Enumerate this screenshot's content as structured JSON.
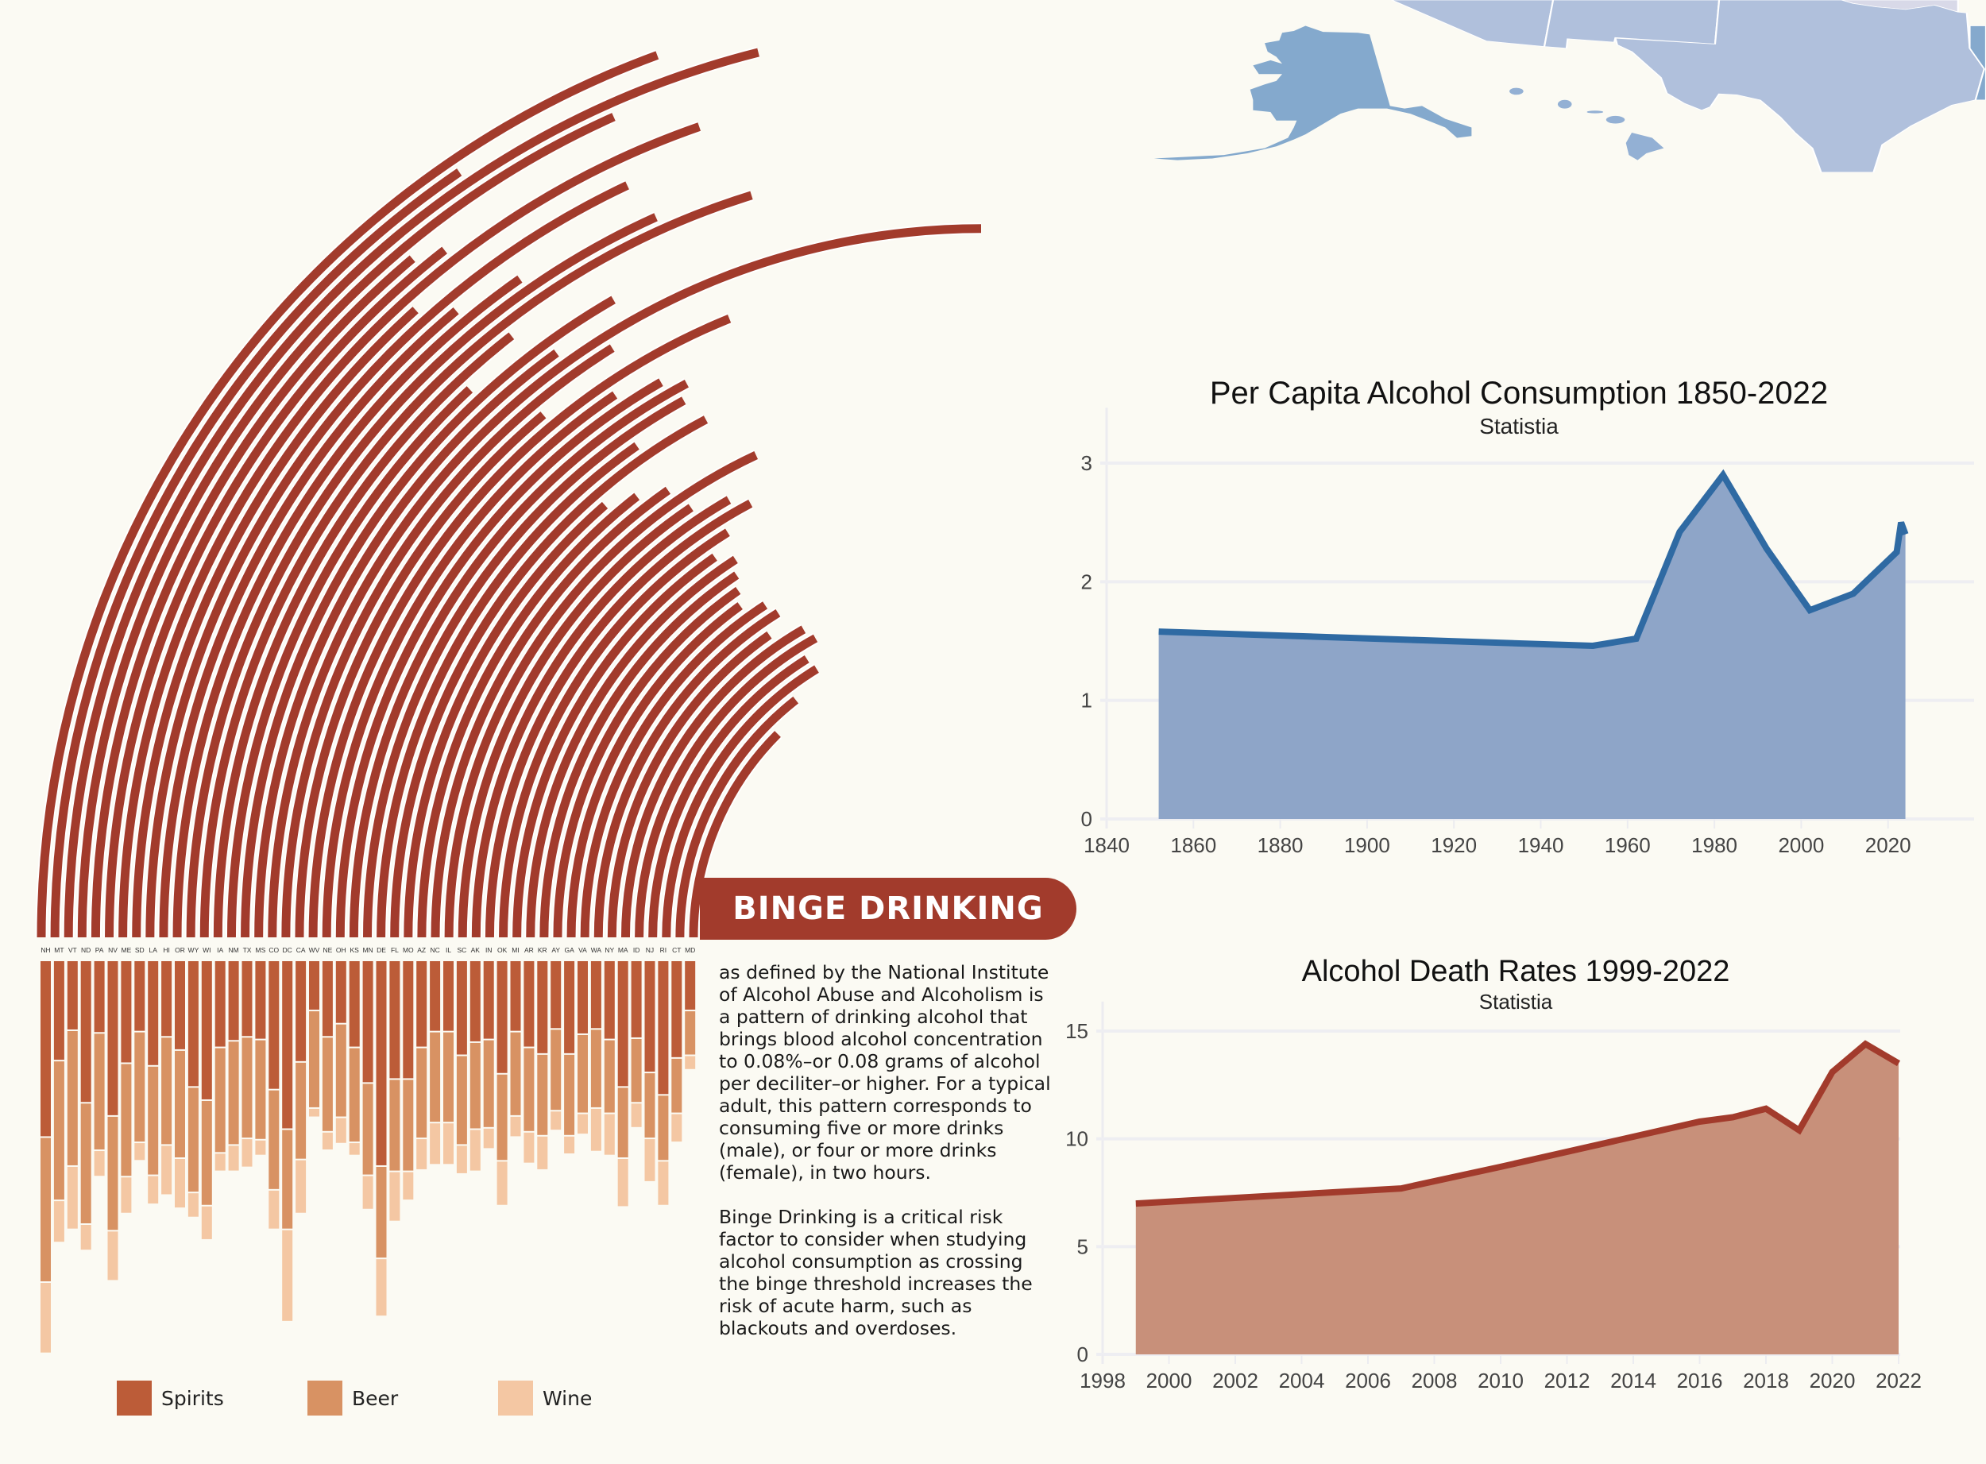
{
  "colors": {
    "background": "#fbfaf3",
    "arc": "#a23b2c",
    "spirits": "#bc5c38",
    "beer": "#d89263",
    "wine": "#f4c7a3",
    "consumption_line": "#2f6aa3",
    "consumption_fill": "#8ea5c8",
    "death_line": "#a23b2c",
    "death_fill": "#c8907a",
    "map_alaska": "#84a9cd",
    "map_hawaii": "#93b0d4",
    "map_states": "#b0c0dc"
  },
  "banner": {
    "title": "BINGE DRINKING"
  },
  "body": {
    "paragraph1": "as defined by the National Institute of Alcohol Abuse and Alcoholism is a pattern of drinking alcohol that brings blood alcohol concentration to 0.08%–or 0.08 grams of alcohol per deciliter–or higher. For a typical adult, this pattern corresponds to consuming five or more drinks (male), or four or more drinks (female), in two hours.",
    "paragraph2": "Binge Drinking is a critical risk factor to consider when studying alcohol consumption as crossing the binge threshold increases the risk of acute harm, such as blackouts and overdoses."
  },
  "legend": {
    "spirits": "Spirits",
    "beer": "Beer",
    "wine": "Wine"
  },
  "map": {
    "shown_regions": [
      "Alaska",
      "Hawaii",
      "Texas",
      "New Mexico",
      "Arizona",
      "Oklahoma",
      "Louisiana"
    ]
  },
  "chart_data": [
    {
      "type": "radial-bar",
      "note_values": "fraction of a quarter circle swept by each arc, outermost first",
      "values": [
        0.776,
        0.619,
        0.843,
        0.732,
        0.556,
        0.578,
        0.787,
        0.533,
        0.72,
        0.556,
        0.611,
        0.73,
        0.809,
        0.578,
        0.522,
        0.667,
        0.6,
        1.0,
        0.644,
        0.556,
        0.754,
        0.622,
        0.667,
        0.689,
        0.678,
        0.611,
        0.689,
        0.544,
        0.578,
        0.611,
        0.722,
        0.622,
        0.667,
        0.689,
        0.644,
        0.611,
        0.633,
        0.622,
        0.611,
        0.6,
        0.633,
        0.644,
        0.611,
        0.667,
        0.678,
        0.644,
        0.65,
        0.578,
        0.5
      ]
    },
    {
      "type": "stacked-bar",
      "categories": [
        "NH",
        "MT",
        "VT",
        "ND",
        "PA",
        "NV",
        "ME",
        "SD",
        "LA",
        "HI",
        "OR",
        "WY",
        "WI",
        "IA",
        "NM",
        "TX",
        "MS",
        "CO",
        "DC",
        "CA",
        "WV",
        "NE",
        "OH",
        "KS",
        "MN",
        "DE",
        "FL",
        "MO",
        "AZ",
        "NC",
        "IL",
        "SC",
        "AK",
        "IN",
        "OK",
        "MI",
        "AR",
        "KR",
        "AY",
        "GA",
        "VA",
        "WA",
        "NY",
        "MA",
        "ID",
        "NJ",
        "RI",
        "CT",
        "MD"
      ],
      "series": [
        {
          "name": "Spirits",
          "values": [
            67,
            38,
            26.5,
            54,
            27.5,
            59,
            39,
            27,
            40,
            29,
            34,
            48,
            53,
            33,
            30.5,
            29,
            30,
            49,
            64,
            38.5,
            19,
            29,
            24,
            33,
            46.5,
            78,
            45,
            45,
            33,
            27,
            27,
            36,
            31,
            30,
            43,
            27,
            33,
            35.5,
            26,
            35.5,
            28,
            26,
            30,
            48,
            29.5,
            42.5,
            51,
            37,
            19
          ]
        },
        {
          "name": "Beer",
          "values": [
            55,
            53,
            51.5,
            46,
            44.5,
            43.5,
            43,
            42,
            41.5,
            41,
            41,
            40,
            40,
            40,
            39.5,
            38.5,
            38,
            38,
            38,
            37,
            37,
            36,
            35.5,
            36,
            35,
            35,
            35,
            35,
            34.5,
            34.5,
            34.5,
            34,
            33,
            33.5,
            33,
            32,
            32,
            31,
            31,
            31,
            30,
            30,
            28,
            27,
            24.5,
            25,
            25,
            21,
            17
          ]
        },
        {
          "name": "Wine",
          "values": [
            27,
            16,
            24,
            10,
            10,
            19,
            14,
            7,
            11,
            19,
            19,
            9.5,
            13,
            7,
            10,
            11,
            6,
            15,
            35,
            20.5,
            3.5,
            7,
            10,
            5,
            13,
            22,
            19,
            11,
            12,
            16,
            16,
            11,
            16,
            8,
            17,
            8,
            12,
            13,
            7.5,
            7,
            8,
            16.5,
            16,
            18.5,
            9.5,
            16.5,
            17,
            11,
            5.5
          ]
        }
      ]
    },
    {
      "type": "area",
      "title": "Per Capita Alcohol Consumption 1850-2022",
      "subtitle": "Statistia",
      "x": [
        1852,
        1952,
        1962,
        1972,
        1982,
        1992,
        2002,
        2012,
        2022,
        2023,
        2024
      ],
      "y": [
        1.58,
        1.46,
        1.52,
        2.42,
        2.9,
        2.28,
        1.76,
        1.9,
        2.25,
        2.5,
        2.4
      ],
      "xlim": [
        1840,
        2041
      ],
      "ylim": [
        0,
        3.4
      ],
      "xticks": [
        "1840",
        "1860",
        "1880",
        "1900",
        "1920",
        "1940",
        "1960",
        "1980",
        "2000",
        "2020"
      ],
      "yticks": [
        "0",
        "1",
        "2",
        "3"
      ],
      "grid": true
    },
    {
      "type": "area",
      "title": "Alcohol Death Rates 1999-2022",
      "subtitle": "Statistia",
      "x": [
        1999,
        2007,
        2010,
        2014,
        2016,
        2017,
        2018,
        2019,
        2020,
        2021,
        2022
      ],
      "y": [
        7.0,
        7.7,
        8.7,
        10.1,
        10.8,
        11.0,
        11.4,
        10.4,
        13.1,
        14.4,
        13.5
      ],
      "xlim": [
        1998,
        2022
      ],
      "ylim": [
        0,
        16
      ],
      "xticks": [
        "1998",
        "2000",
        "2002",
        "2004",
        "2006",
        "2008",
        "2010",
        "2012",
        "2014",
        "2016",
        "2018",
        "2020",
        "2022"
      ],
      "yticks": [
        "0",
        "5",
        "10",
        "15"
      ],
      "grid": true
    }
  ]
}
